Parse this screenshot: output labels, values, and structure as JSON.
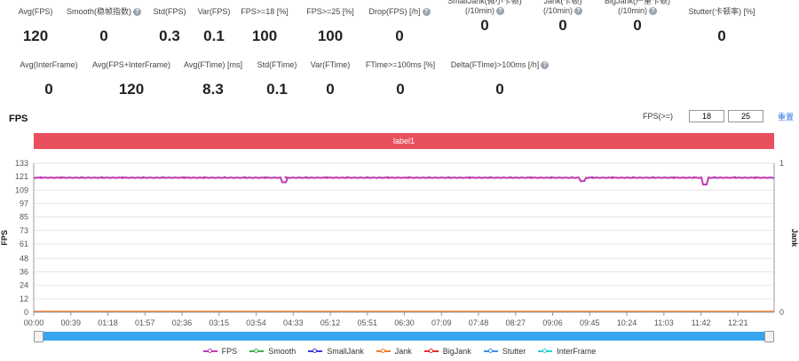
{
  "stats_row1": [
    {
      "label": "Avg(FPS)",
      "value": "120",
      "help": false
    },
    {
      "label": "Smooth(稳帧指数)",
      "value": "0",
      "help": true
    },
    {
      "label": "Std(FPS)",
      "value": "0.3",
      "help": false
    },
    {
      "label": "Var(FPS)",
      "value": "0.1",
      "help": false
    },
    {
      "label": "FPS>=18 [%]",
      "value": "100",
      "help": false
    },
    {
      "label": "FPS>=25 [%]",
      "value": "100",
      "help": false
    },
    {
      "label": "Drop(FPS) [/h]",
      "value": "0",
      "help": true
    },
    {
      "label": "SmallJank(微小卡顿)",
      "label2": "(/10min)",
      "value": "0",
      "help": true
    },
    {
      "label": "Jank(卡顿)",
      "label2": "(/10min)",
      "value": "0",
      "help": true
    },
    {
      "label": "BigJank(严重卡顿)",
      "label2": "(/10min)",
      "value": "0",
      "help": true
    },
    {
      "label": "Stutter(卡顿率) [%]",
      "value": "0",
      "help": false
    }
  ],
  "stats_row2": [
    {
      "label": "Avg(InterFrame)",
      "value": "0",
      "help": false
    },
    {
      "label": "Avg(FPS+InterFrame)",
      "value": "120",
      "help": false
    },
    {
      "label": "Avg(FTime) [ms]",
      "value": "8.3",
      "help": false
    },
    {
      "label": "Std(FTime)",
      "value": "0.1",
      "help": false
    },
    {
      "label": "Var(FTime)",
      "value": "0",
      "help": false
    },
    {
      "label": "FTime>=100ms [%]",
      "value": "0",
      "help": false
    },
    {
      "label": "Delta(FTime)>100ms [/h]",
      "value": "0",
      "help": true
    }
  ],
  "fps_section": {
    "title": "FPS",
    "filter_label": "FPS(>=)",
    "threshold1": "18",
    "threshold2": "25",
    "reset_label": "重置",
    "label_bar": "label1"
  },
  "chart_data": {
    "type": "line",
    "y_left_label": "FPS",
    "y_right_label": "Jank",
    "y_ticks": [
      "133",
      "121",
      "109",
      "97",
      "85",
      "73",
      "61",
      "48",
      "36",
      "24",
      "12",
      "0"
    ],
    "y_lim": [
      0,
      133
    ],
    "y_right_ticks": [
      "1",
      "0"
    ],
    "x_ticks": [
      "00:00",
      "00:39",
      "01:18",
      "01:57",
      "02:36",
      "03:15",
      "03:54",
      "04:33",
      "05:12",
      "05:51",
      "06:30",
      "07:09",
      "07:48",
      "08:27",
      "09:06",
      "09:45",
      "10:24",
      "11:03",
      "11:42",
      "12:21"
    ],
    "fps_dips": [
      {
        "t": "04:24",
        "v": 116
      },
      {
        "t": "09:38",
        "v": 117
      },
      {
        "t": "11:46",
        "v": 114
      }
    ],
    "fps_level": 120,
    "series": [
      {
        "name": "FPS",
        "color": "#c13ab5"
      },
      {
        "name": "Smooth",
        "color": "#3cb44b"
      },
      {
        "name": "SmallJank",
        "color": "#3b3be0"
      },
      {
        "name": "Jank",
        "color": "#f07d2c"
      },
      {
        "name": "BigJank",
        "color": "#e0302a"
      },
      {
        "name": "Stutter",
        "color": "#3f8ef0"
      },
      {
        "name": "InterFrame",
        "color": "#2ecfd8"
      }
    ]
  }
}
